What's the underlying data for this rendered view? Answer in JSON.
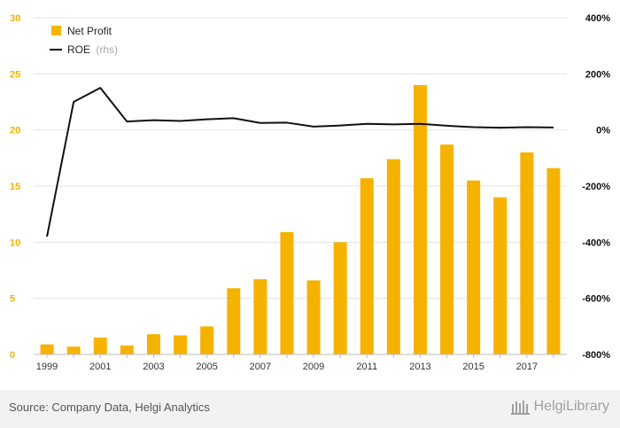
{
  "chart_data": {
    "type": "bar+line",
    "categories": [
      "1999",
      "2000",
      "2001",
      "2002",
      "2003",
      "2004",
      "2005",
      "2006",
      "2007",
      "2008",
      "2009",
      "2010",
      "2011",
      "2012",
      "2013",
      "2014",
      "2015",
      "2016",
      "2017",
      "2018"
    ],
    "x_tick_labels": [
      "1999",
      "2001",
      "2003",
      "2005",
      "2007",
      "2009",
      "2011",
      "2013",
      "2015",
      "2017"
    ],
    "series": [
      {
        "name": "Net Profit",
        "axis": "left",
        "kind": "bar",
        "values": [
          0.9,
          0.7,
          1.5,
          0.8,
          1.8,
          1.7,
          2.5,
          5.9,
          6.7,
          10.9,
          6.6,
          10.0,
          15.7,
          17.4,
          24.0,
          18.7,
          15.5,
          14.0,
          18.0,
          16.6
        ],
        "color": "#f5b300"
      },
      {
        "name": "ROE",
        "name_suffix": "(rhs)",
        "axis": "right",
        "kind": "line",
        "values": [
          -380,
          100,
          150,
          30,
          35,
          32,
          38,
          42,
          25,
          26,
          12,
          16,
          22,
          20,
          22,
          15,
          10,
          8,
          10,
          9
        ],
        "color": "#111111"
      }
    ],
    "left_axis": {
      "min": 0,
      "max": 30,
      "ticks": [
        "0",
        "5",
        "10",
        "15",
        "20",
        "25",
        "30"
      ],
      "color": "#f2b400"
    },
    "right_axis": {
      "min": -800,
      "max": 400,
      "ticks": [
        "-800%",
        "-600%",
        "-400%",
        "-200%",
        "0%",
        "200%",
        "400%"
      ]
    },
    "grid": true,
    "legend_position": "top-left"
  },
  "footer": {
    "source": "Source: Company Data, Helgi Analytics",
    "brand": "HelgiLibrary"
  }
}
